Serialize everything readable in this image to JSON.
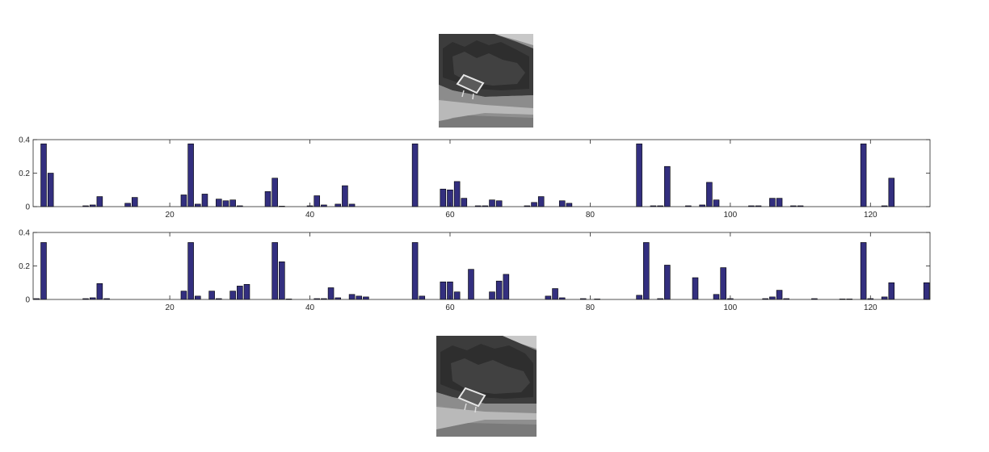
{
  "colors": {
    "bar_fill": "#332f7f",
    "bar_stroke": "#000000",
    "axis": "#262626",
    "background": "#ffffff"
  },
  "images": [
    {
      "name": "top-photo",
      "description_icon": "grayscale-forest-sign-photo"
    },
    {
      "name": "bottom-photo",
      "description_icon": "grayscale-forest-sign-photo"
    }
  ],
  "chart_data": [
    {
      "type": "bar",
      "title": "",
      "xlabel": "",
      "ylabel": "",
      "xlim": [
        0.5,
        128.5
      ],
      "ylim": [
        0,
        0.4
      ],
      "xticks": [
        20,
        40,
        60,
        80,
        100,
        120
      ],
      "yticks": [
        0,
        0.2,
        0.4
      ],
      "xtick_labels": [
        "20",
        "40",
        "60",
        "80",
        "100",
        "120"
      ],
      "ytick_labels": [
        "0",
        "0.2",
        "0.4"
      ],
      "grid": false,
      "x": [
        2,
        3,
        8,
        9,
        10,
        14,
        15,
        22,
        23,
        24,
        25,
        27,
        28,
        29,
        30,
        34,
        35,
        36,
        40,
        41,
        42,
        44,
        45,
        46,
        55,
        59,
        60,
        61,
        62,
        64,
        65,
        66,
        67,
        71,
        72,
        73,
        76,
        77,
        87,
        89,
        90,
        91,
        94,
        96,
        97,
        98,
        103,
        104,
        106,
        107,
        109,
        110,
        119,
        122,
        123
      ],
      "values": [
        0.375,
        0.2,
        0.005,
        0.01,
        0.06,
        0.02,
        0.055,
        0.07,
        0.375,
        0.015,
        0.075,
        0.045,
        0.035,
        0.04,
        0.005,
        0.09,
        0.17,
        0.003,
        0.005,
        0.065,
        0.01,
        0.015,
        0.125,
        0.015,
        0.375,
        0.105,
        0.1,
        0.15,
        0.05,
        0.005,
        0.005,
        0.04,
        0.035,
        0.005,
        0.025,
        0.06,
        0.035,
        0.02,
        0.375,
        0.005,
        0.005,
        0.24,
        0.005,
        0.01,
        0.145,
        0.04,
        0.005,
        0.005,
        0.05,
        0.05,
        0.005,
        0.005,
        0.375,
        0.005,
        0.17
      ]
    },
    {
      "type": "bar",
      "title": "",
      "xlabel": "",
      "ylabel": "",
      "xlim": [
        0.5,
        128.5
      ],
      "ylim": [
        0,
        0.4
      ],
      "xticks": [
        20,
        40,
        60,
        80,
        100,
        120
      ],
      "yticks": [
        0,
        0.2,
        0.4
      ],
      "xtick_labels": [
        "20",
        "40",
        "60",
        "80",
        "100",
        "120"
      ],
      "ytick_labels": [
        "0",
        "0.2",
        "0.4"
      ],
      "grid": false,
      "x": [
        1,
        2,
        8,
        9,
        10,
        11,
        22,
        23,
        24,
        26,
        27,
        29,
        30,
        31,
        35,
        36,
        37,
        41,
        42,
        43,
        44,
        46,
        47,
        48,
        55,
        56,
        59,
        60,
        61,
        63,
        66,
        67,
        68,
        74,
        75,
        76,
        79,
        81,
        87,
        88,
        90,
        91,
        95,
        98,
        99,
        100,
        105,
        106,
        107,
        108,
        112,
        116,
        117,
        119,
        120,
        122,
        123,
        128
      ],
      "values": [
        0.005,
        0.34,
        0.005,
        0.01,
        0.095,
        0.005,
        0.05,
        0.34,
        0.02,
        0.05,
        0.005,
        0.05,
        0.08,
        0.09,
        0.34,
        0.225,
        0.003,
        0.005,
        0.005,
        0.07,
        0.01,
        0.03,
        0.02,
        0.015,
        0.34,
        0.02,
        0.105,
        0.105,
        0.045,
        0.18,
        0.045,
        0.11,
        0.15,
        0.02,
        0.065,
        0.01,
        0.005,
        0.003,
        0.025,
        0.34,
        0.005,
        0.205,
        0.13,
        0.03,
        0.19,
        0.005,
        0.005,
        0.015,
        0.055,
        0.005,
        0.005,
        0.003,
        0.003,
        0.34,
        0.005,
        0.015,
        0.1,
        0.1
      ]
    }
  ]
}
